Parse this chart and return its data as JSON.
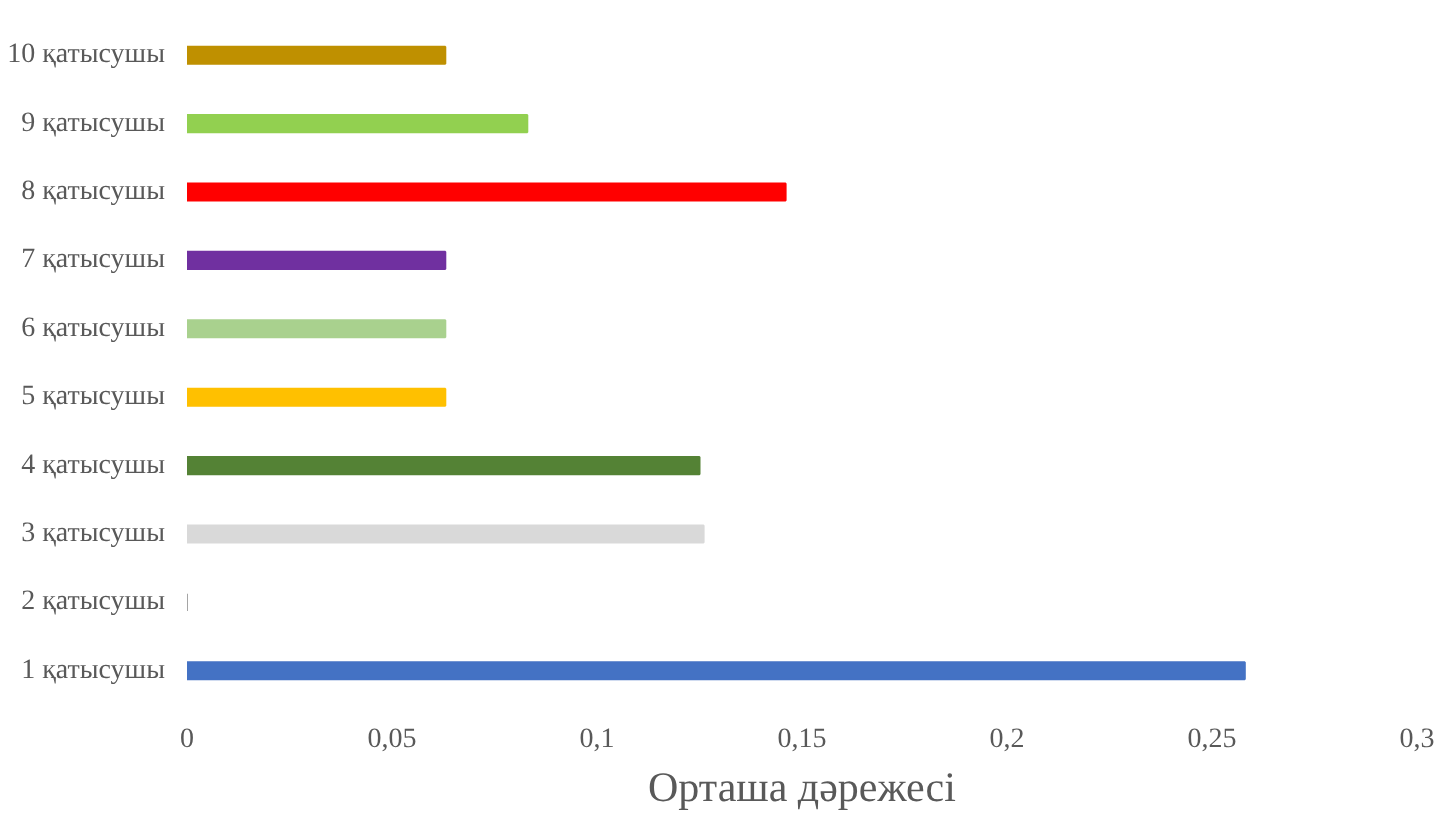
{
  "chart_data": {
    "type": "bar",
    "orientation": "horizontal",
    "xlabel": "Орташа дәрежесі",
    "categories": [
      "10 қатысушы",
      "9 қатысушы",
      "8 қатысушы",
      "7 қатысушы",
      "6 қатысушы",
      "5 қатысушы",
      "4 қатысушы",
      "3 қатысушы",
      "2 қатысушы",
      "1 қатысушы"
    ],
    "values": [
      0.063,
      0.083,
      0.146,
      0.063,
      0.063,
      0.063,
      0.125,
      0.126,
      0,
      0.258
    ],
    "colors": [
      "#bf9000",
      "#92d050",
      "#ff0000",
      "#7030a0",
      "#a9d18e",
      "#ffc000",
      "#548235",
      "#d9d9d9",
      "#a5a5a5",
      "#4472c4"
    ],
    "xlim": [
      0,
      0.3
    ],
    "xticks": [
      0,
      {
        "value": 0.05,
        "label": "0,05"
      },
      {
        "value": 0.1,
        "label": "0,1"
      },
      {
        "value": 0.15,
        "label": "0,15"
      },
      {
        "value": 0.2,
        "label": "0,2"
      },
      {
        "value": 0.25,
        "label": "0,25"
      },
      {
        "value": 0.3,
        "label": "0,3"
      }
    ],
    "grid": false
  }
}
